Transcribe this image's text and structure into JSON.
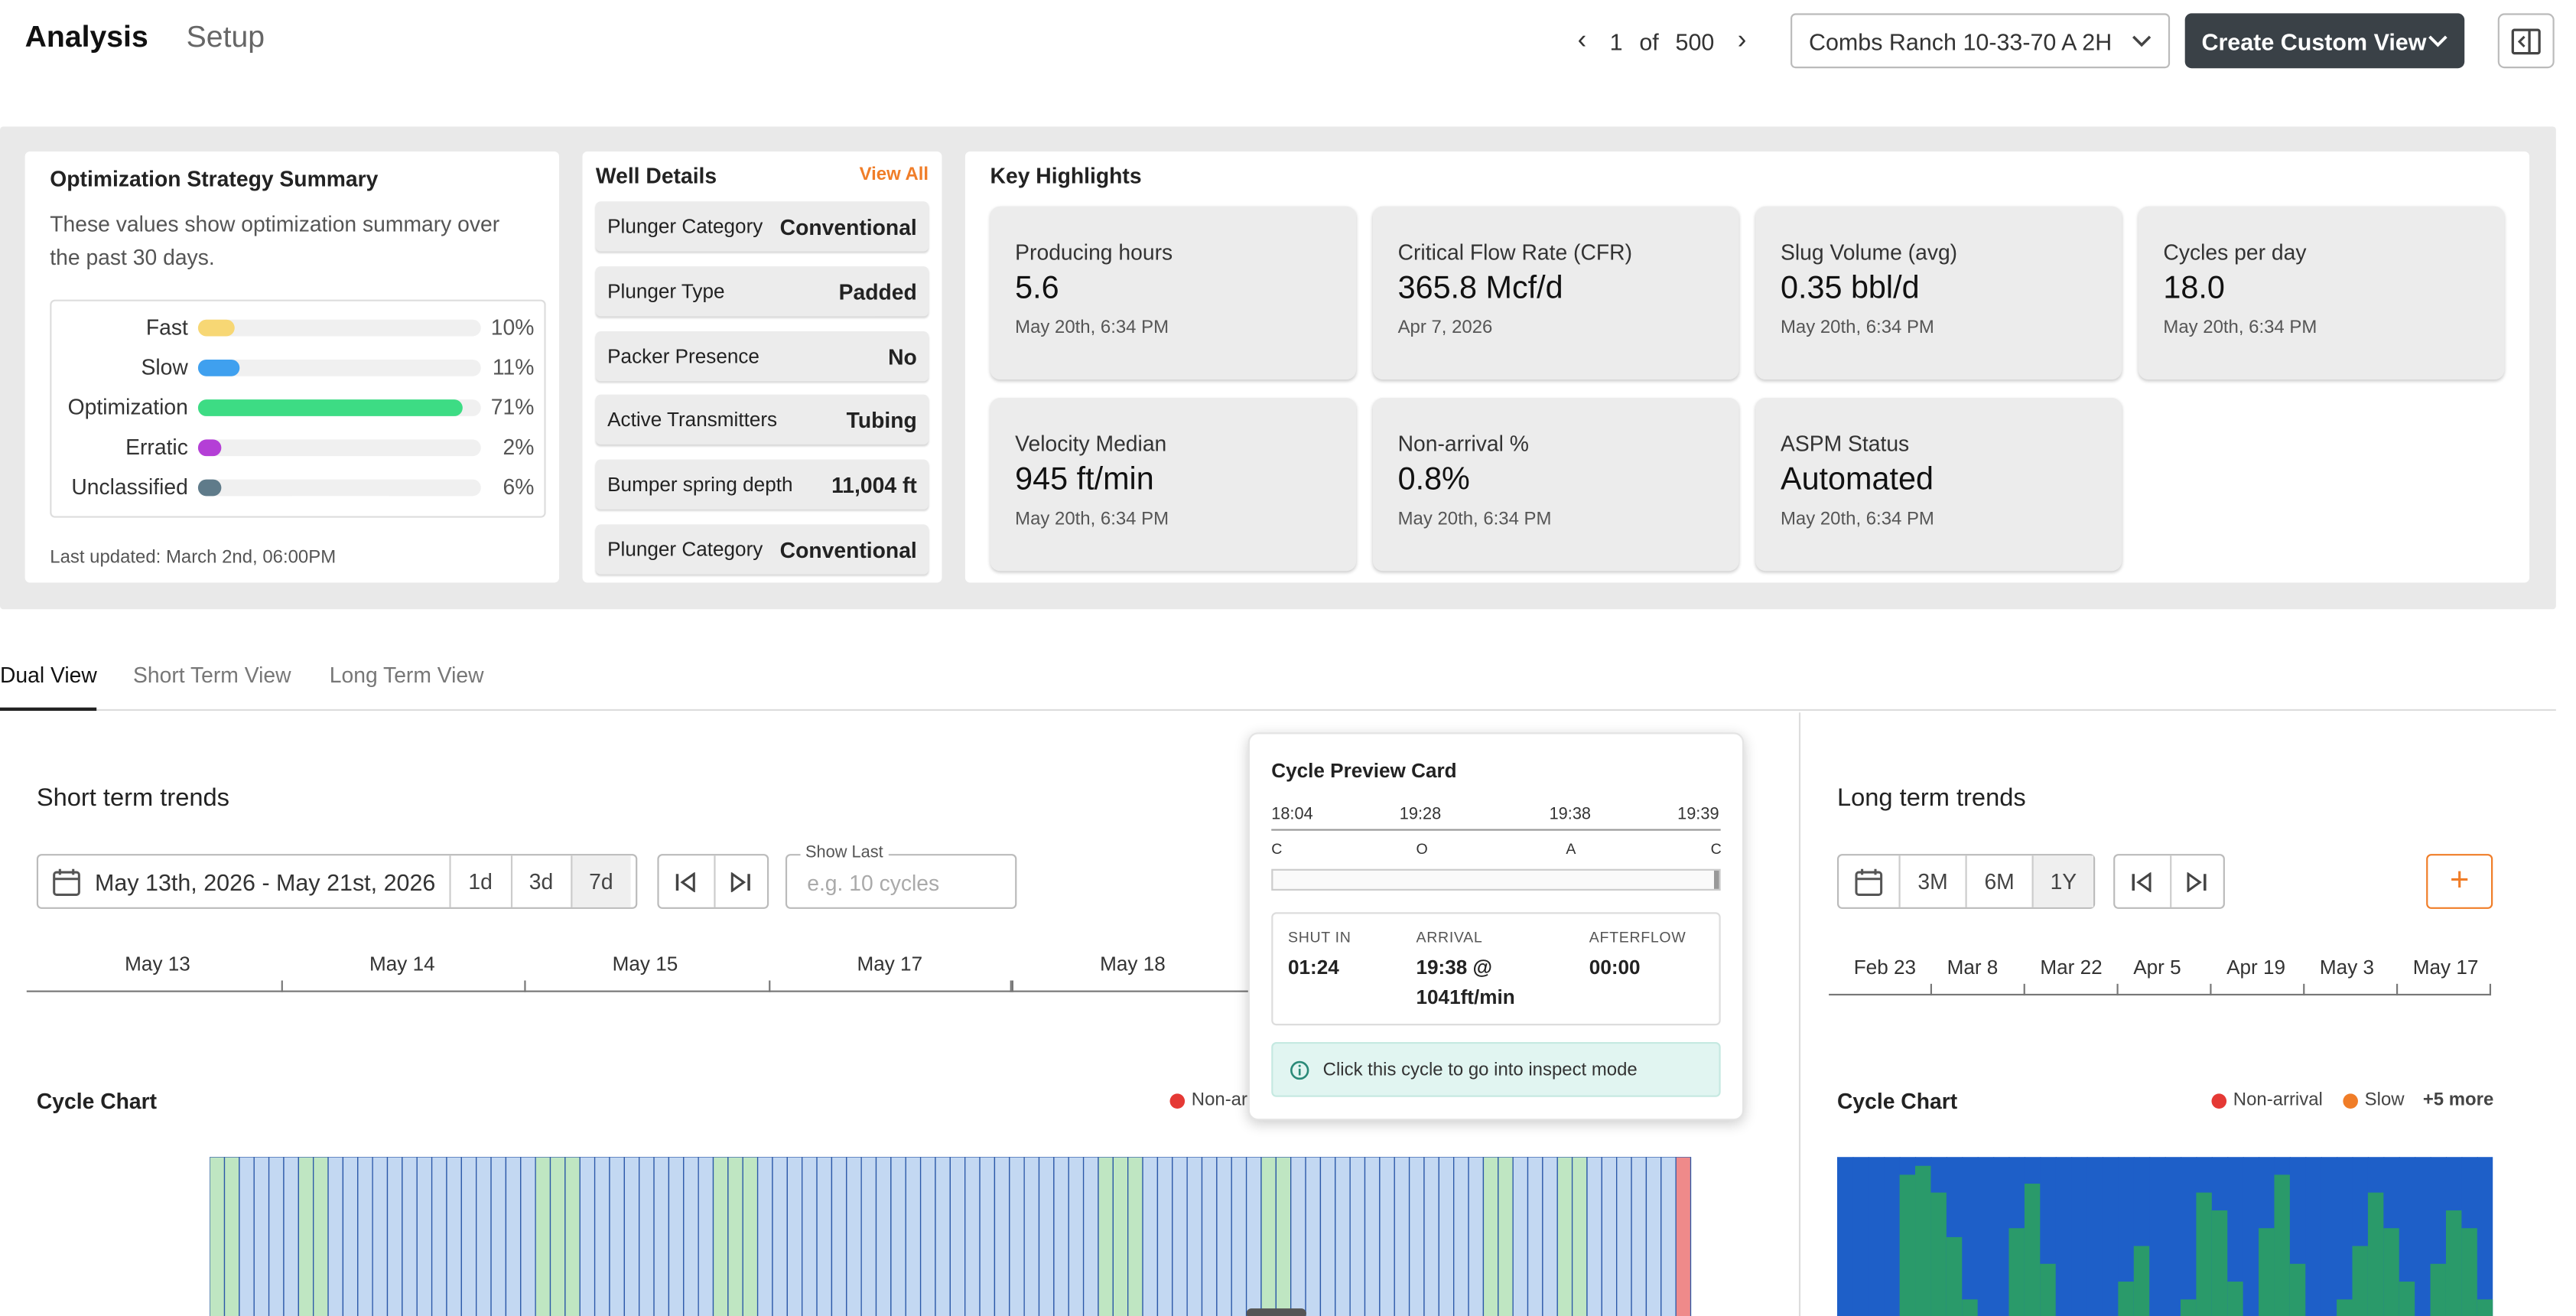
{
  "nav": {
    "tab_analysis": "Analysis",
    "tab_setup": "Setup"
  },
  "pager": {
    "current": "1",
    "of": "of",
    "total": "500"
  },
  "well_select": {
    "value": "Combs Ranch 10-33-70 A 2H"
  },
  "create_view": {
    "label": "Create Custom View"
  },
  "opt_summary": {
    "title": "Optimization Strategy Summary",
    "desc_line1": "These values show optimization summary over",
    "desc_line2": "the past 30 days.",
    "rows": [
      {
        "label": "Fast",
        "pct": "10%",
        "value": 10,
        "color": "#f7d774"
      },
      {
        "label": "Slow",
        "pct": "11%",
        "value": 11,
        "color": "#3fa0ef"
      },
      {
        "label": "Optimization",
        "pct": "71%",
        "value": 71,
        "color": "#3ddc84"
      },
      {
        "label": "Erratic",
        "pct": "2%",
        "value": 2,
        "color": "#b43fd6"
      },
      {
        "label": "Unclassified",
        "pct": "6%",
        "value": 6,
        "color": "#5f7b8a"
      }
    ],
    "updated": "Last updated: March 2nd, 06:00PM"
  },
  "well_details": {
    "title": "Well Details",
    "view_all": "View All",
    "rows": [
      {
        "k": "Plunger Category",
        "v": "Conventional"
      },
      {
        "k": "Plunger Type",
        "v": "Padded"
      },
      {
        "k": "Packer Presence",
        "v": "No"
      },
      {
        "k": "Active Transmitters",
        "v": "Tubing"
      },
      {
        "k": "Bumper spring depth",
        "v": "11,004 ft"
      },
      {
        "k": "Plunger Category",
        "v": "Conventional"
      }
    ]
  },
  "key_highlights": {
    "title": "Key Highlights",
    "cards": [
      {
        "t": "Producing hours",
        "v": "5.6",
        "d": "May 20th, 6:34 PM"
      },
      {
        "t": "Critical Flow Rate (CFR)",
        "v": "365.8 Mcf/d",
        "d": "Apr 7, 2026"
      },
      {
        "t": "Slug Volume (avg)",
        "v": "0.35 bbl/d",
        "d": "May 20th, 6:34 PM"
      },
      {
        "t": "Cycles per day",
        "v": "18.0",
        "d": "May 20th, 6:34 PM"
      },
      {
        "t": "Velocity Median",
        "v": "945 ft/min",
        "d": "May 20th, 6:34 PM"
      },
      {
        "t": "Non-arrival %",
        "v": "0.8%",
        "d": "May 20th, 6:34 PM"
      },
      {
        "t": "ASPM Status",
        "v": "Automated",
        "d": "May 20th, 6:34 PM"
      }
    ]
  },
  "view_tabs": {
    "dual": "Dual View",
    "short": "Short Term View",
    "long": "Long Term View"
  },
  "short_term": {
    "title": "Short term trends",
    "date_range": "May 13th, 2026 - May 21st, 2026",
    "seg": [
      "1d",
      "3d",
      "7d"
    ],
    "show_last_label": "Show Last",
    "show_last_placeholder": "e.g. 10 cycles",
    "dates": [
      "May 13",
      "May 14",
      "May 15",
      "May 17",
      "May 18"
    ],
    "cycle_title": "Cycle Chart",
    "legend_partial": "Non-arri"
  },
  "long_term": {
    "title": "Long term trends",
    "seg": [
      "3M",
      "6M",
      "1Y"
    ],
    "dates": [
      "Feb 23",
      "Mar 8",
      "Mar 22",
      "Apr 5",
      "Apr 19",
      "May 3",
      "May 17"
    ],
    "cycle_title": "Cycle Chart",
    "legend": {
      "nonarrival": "Non-arrival",
      "slow": "Slow",
      "more": "+5 more"
    },
    "add": "+"
  },
  "preview": {
    "title": "Cycle Preview Card",
    "times": [
      "18:04",
      "19:28",
      "19:38",
      "19:39"
    ],
    "phases": [
      "C",
      "O",
      "A",
      "C"
    ],
    "shut_in_label": "SHUT IN",
    "shut_in": "01:24",
    "arrival_label": "ARRIVAL",
    "arrival_1": "19:38 @",
    "arrival_2": "1041ft/min",
    "afterflow_label": "AFTERFLOW",
    "afterflow": "00:00",
    "hint": "Click this cycle to go into inspect mode"
  },
  "colors": {
    "accent": "#f07d28",
    "dark": "#3a4147",
    "green": "#3ddc84",
    "blue": "#1f6bd1"
  }
}
